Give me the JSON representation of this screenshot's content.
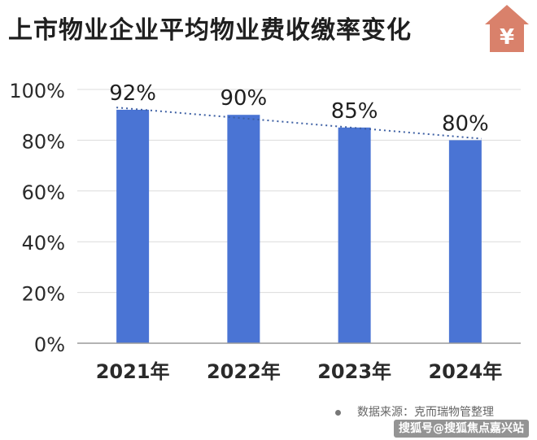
{
  "title": "上市物业企业平均物业费收缴率变化",
  "icon": {
    "name": "house-yuan-icon",
    "glyph": "¥",
    "color": "#d9816b"
  },
  "source_note": "数据来源：克而瑞物管整理",
  "watermark": "搜狐号@搜狐焦点嘉兴站",
  "colors": {
    "bar": "#4a74d4",
    "axis": "#9a9a9a",
    "grid": "#dcdcdc",
    "trendline": "#3d5fa3"
  },
  "chart_data": {
    "type": "bar",
    "categories": [
      "2021年",
      "2022年",
      "2023年",
      "2024年"
    ],
    "values": [
      92,
      90,
      85,
      80
    ],
    "data_labels": [
      "92%",
      "90%",
      "85%",
      "80%"
    ],
    "ylim": [
      0,
      100
    ],
    "yticks": [
      0,
      20,
      40,
      60,
      80,
      100
    ],
    "ytick_labels": [
      "0%",
      "20%",
      "40%",
      "60%",
      "80%",
      "100%"
    ],
    "trendline": "linear dotted",
    "grid": true,
    "legend": "none",
    "xlabel": "",
    "ylabel": ""
  }
}
